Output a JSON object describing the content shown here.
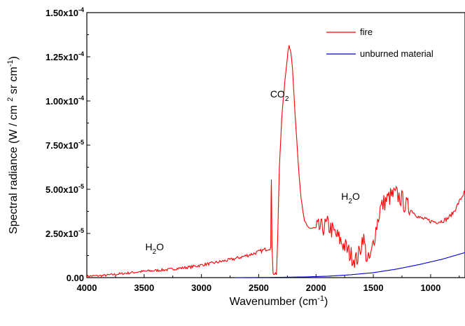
{
  "chart_data": {
    "type": "line",
    "xlabel": "Wavenumber (cm",
    "xlabel_sup": "-1",
    "xlabel_end": ")",
    "ylabel": "Spectral radiance (W / cm",
    "ylabel_sup1": "2",
    "ylabel_mid": " sr cm",
    "ylabel_sup2": "-1",
    "ylabel_end": ")",
    "xlim": [
      4000,
      700
    ],
    "ylim": [
      0,
      0.00015
    ],
    "x_reversed": true,
    "x_ticks": [
      4000,
      3500,
      3000,
      2500,
      2000,
      1500,
      1000
    ],
    "x_tick_labels": [
      "4000",
      "3500",
      "3000",
      "2500",
      "2000",
      "1500",
      "1000"
    ],
    "y_ticks": [
      0,
      2.5e-05,
      5e-05,
      7.5e-05,
      0.0001,
      0.000125,
      0.00015
    ],
    "y_tick_labels": [
      {
        "mant": "0.00",
        "exp": ""
      },
      {
        "mant": "2.50x10",
        "exp": "-5"
      },
      {
        "mant": "5.00x10",
        "exp": "-5"
      },
      {
        "mant": "7.50x10",
        "exp": "-5"
      },
      {
        "mant": "1.00x10",
        "exp": "-4"
      },
      {
        "mant": "1.25x10",
        "exp": "-4"
      },
      {
        "mant": "1.50x10",
        "exp": "-4"
      }
    ],
    "grid": false,
    "legend_position": "top-right",
    "annotations": [
      {
        "main": "CO",
        "sub": "2",
        "x": 2400,
        "y": 0.000102
      },
      {
        "main": "H",
        "sub": "2",
        "main2": "O",
        "x": 1780,
        "y": 4.4e-05
      },
      {
        "main": "H",
        "sub": "2",
        "main2": "O",
        "x": 3490,
        "y": 1.55e-05
      }
    ],
    "series": [
      {
        "name": "fire",
        "color": "#ff0000",
        "noise": true,
        "points": [
          [
            4000,
            8e-07
          ],
          [
            3850,
            1.2e-06
          ],
          [
            3700,
            2.2e-06
          ],
          [
            3500,
            3.6e-06
          ],
          [
            3300,
            4.5e-06
          ],
          [
            3100,
            6e-06
          ],
          [
            2900,
            8.2e-06
          ],
          [
            2700,
            1.08e-05
          ],
          [
            2550,
            1.35e-05
          ],
          [
            2430,
            1.62e-05
          ],
          [
            2395,
            1.7e-05
          ],
          [
            2392,
            4.4e-05
          ],
          [
            2390,
            5.6e-05
          ],
          [
            2387,
            4.2e-05
          ],
          [
            2384,
            1.8e-05
          ],
          [
            2375,
            2.2e-06
          ],
          [
            2345,
            1.8e-06
          ],
          [
            2335,
            2.2e-05
          ],
          [
            2320,
            6.2e-05
          ],
          [
            2300,
            9e-05
          ],
          [
            2280,
            0.000105
          ],
          [
            2260,
            0.000119
          ],
          [
            2245,
            0.000128
          ],
          [
            2235,
            0.000132
          ],
          [
            2220,
            0.000128
          ],
          [
            2205,
            0.000118
          ],
          [
            2190,
            0.0001
          ],
          [
            2175,
            8.5e-05
          ],
          [
            2160,
            7e-05
          ],
          [
            2145,
            5.6e-05
          ],
          [
            2130,
            4.5e-05
          ],
          [
            2115,
            3.7e-05
          ],
          [
            2100,
            3.2e-05
          ],
          [
            2080,
            2.9e-05
          ],
          [
            2050,
            2.8e-05
          ],
          [
            2000,
            2.8e-05
          ],
          [
            1950,
            2.8e-05
          ],
          [
            1900,
            3e-05
          ],
          [
            1850,
            2.6e-05
          ],
          [
            1800,
            2.2e-05
          ],
          [
            1750,
            1.8e-05
          ],
          [
            1700,
            1.3e-05
          ],
          [
            1650,
            1e-05
          ],
          [
            1620,
            1.4e-05
          ],
          [
            1590,
            2.4e-05
          ],
          [
            1570,
            1.6e-05
          ],
          [
            1550,
            8.5e-06
          ],
          [
            1520,
            1.2e-05
          ],
          [
            1500,
            2e-05
          ],
          [
            1470,
            3e-05
          ],
          [
            1440,
            3.9e-05
          ],
          [
            1400,
            4.3e-05
          ],
          [
            1350,
            4.6e-05
          ],
          [
            1300,
            4.7e-05
          ],
          [
            1260,
            4.5e-05
          ],
          [
            1220,
            4.1e-05
          ],
          [
            1150,
            3.7e-05
          ],
          [
            1100,
            3.4e-05
          ],
          [
            1050,
            3.3e-05
          ],
          [
            1000,
            3.2e-05
          ],
          [
            950,
            3.15e-05
          ],
          [
            900,
            3.2e-05
          ],
          [
            850,
            3.35e-05
          ],
          [
            800,
            3.7e-05
          ],
          [
            750,
            4.3e-05
          ],
          [
            700,
            4.9e-05
          ]
        ]
      },
      {
        "name": "unburned material",
        "color": "#0000cc",
        "noise": false,
        "points": [
          [
            2700,
            0.0
          ],
          [
            2400,
            1e-07
          ],
          [
            2100,
            4e-07
          ],
          [
            1900,
            8e-07
          ],
          [
            1700,
            1.6e-06
          ],
          [
            1500,
            2.8e-06
          ],
          [
            1300,
            4.8e-06
          ],
          [
            1100,
            7.4e-06
          ],
          [
            900,
            1.04e-05
          ],
          [
            700,
            1.42e-05
          ]
        ]
      }
    ]
  }
}
